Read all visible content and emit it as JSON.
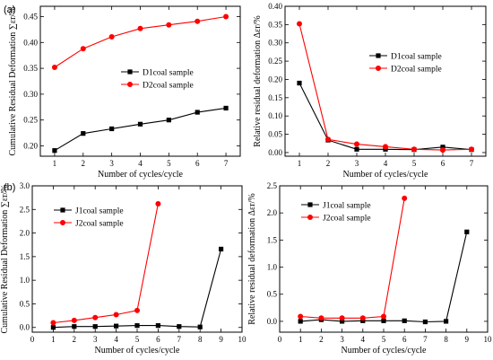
{
  "panel_labels": {
    "a": "(a)",
    "b": "(b)"
  },
  "chart_data": [
    {
      "type": "line",
      "panel": "a",
      "ylabel": "Cumulative Residual Deformation ∑εr/%",
      "xlabel": "Number of cycles/cycle",
      "xlim": [
        0.5,
        7.5
      ],
      "ylim": [
        0.18,
        0.47
      ],
      "xticks": [
        1,
        2,
        3,
        4,
        5,
        6,
        7
      ],
      "yticks": [
        0.2,
        0.25,
        0.3,
        0.35,
        0.4,
        0.45
      ],
      "ytick_labels": [
        "0.20",
        "0.25",
        "0.30",
        "0.35",
        "0.40",
        "0.45"
      ],
      "legend_position": "center-right",
      "series": [
        {
          "name": "D1coal sample",
          "color": "#000000",
          "marker": "square",
          "x": [
            1,
            2,
            3,
            4,
            5,
            6,
            7
          ],
          "y": [
            0.191,
            0.224,
            0.233,
            0.242,
            0.25,
            0.265,
            0.273
          ]
        },
        {
          "name": "D2coal sample",
          "color": "#ff0000",
          "marker": "circle",
          "x": [
            1,
            2,
            3,
            4,
            5,
            6,
            7
          ],
          "y": [
            0.352,
            0.388,
            0.411,
            0.427,
            0.434,
            0.441,
            0.45
          ]
        }
      ]
    },
    {
      "type": "line",
      "panel": "a-right",
      "ylabel": "Relative residual deformation Δεr/%",
      "xlabel": "Number of cycles/cycle",
      "xlim": [
        0.5,
        7.5
      ],
      "ylim": [
        -0.01,
        0.4
      ],
      "xticks": [
        1,
        2,
        3,
        4,
        5,
        6,
        7
      ],
      "yticks": [
        0.0,
        0.05,
        0.1,
        0.15,
        0.2,
        0.25,
        0.3,
        0.35,
        0.4
      ],
      "ytick_labels": [
        "0.00",
        "0.05",
        "0.10",
        "0.15",
        "0.20",
        "0.25",
        "0.30",
        "0.35",
        "0.40"
      ],
      "legend_position": "top-right",
      "series": [
        {
          "name": "D1coal sample",
          "color": "#000000",
          "marker": "square",
          "x": [
            1,
            2,
            3,
            4,
            5,
            6,
            7
          ],
          "y": [
            0.19,
            0.034,
            0.009,
            0.009,
            0.008,
            0.015,
            0.008
          ]
        },
        {
          "name": "D2coal sample",
          "color": "#ff0000",
          "marker": "circle",
          "x": [
            1,
            2,
            3,
            4,
            5,
            6,
            7
          ],
          "y": [
            0.352,
            0.036,
            0.023,
            0.016,
            0.009,
            0.007,
            0.009
          ]
        }
      ]
    },
    {
      "type": "line",
      "panel": "b",
      "ylabel": "Cumulative Residual Deformation ∑εr/%",
      "xlabel": "Number of cycles/cycle",
      "xlim": [
        0,
        10
      ],
      "ylim": [
        -0.1,
        3.0
      ],
      "xticks": [
        0,
        1,
        2,
        3,
        4,
        5,
        6,
        7,
        8,
        9,
        10
      ],
      "yticks": [
        0.0,
        0.5,
        1.0,
        1.5,
        2.0,
        2.5,
        3.0
      ],
      "ytick_labels": [
        "0.0",
        "0.5",
        "1.0",
        "1.5",
        "2.0",
        "2.5",
        "3.0"
      ],
      "legend_position": "top-left",
      "series": [
        {
          "name": "J1coal sample",
          "color": "#000000",
          "marker": "square",
          "x": [
            1,
            2,
            3,
            4,
            5,
            6,
            7,
            8,
            9
          ],
          "y": [
            0.0,
            0.02,
            0.02,
            0.03,
            0.04,
            0.04,
            0.02,
            0.01,
            1.66
          ]
        },
        {
          "name": "J2coal sample",
          "color": "#ff0000",
          "marker": "circle",
          "x": [
            1,
            2,
            3,
            4,
            5,
            6
          ],
          "y": [
            0.1,
            0.15,
            0.21,
            0.27,
            0.36,
            2.62
          ]
        }
      ]
    },
    {
      "type": "line",
      "panel": "b-right",
      "ylabel": "Relative residual deformation Δεr/%",
      "xlabel": "Number of cycles/cycle",
      "xlim": [
        0,
        10
      ],
      "ylim": [
        -0.2,
        2.5
      ],
      "xticks": [
        0,
        1,
        2,
        3,
        4,
        5,
        6,
        7,
        8,
        9,
        10
      ],
      "yticks": [
        0.0,
        0.5,
        1.0,
        1.5,
        2.0,
        2.5
      ],
      "ytick_labels": [
        "0.0",
        "0.5",
        "1.0",
        "1.5",
        "2.0",
        "2.5"
      ],
      "legend_position": "top-left",
      "series": [
        {
          "name": "J1coal sample",
          "color": "#000000",
          "marker": "square",
          "x": [
            1,
            2,
            3,
            4,
            5,
            6,
            7,
            8,
            9
          ],
          "y": [
            0.0,
            0.03,
            0.0,
            0.01,
            0.01,
            0.01,
            -0.01,
            0.0,
            1.65
          ]
        },
        {
          "name": "J2coal sample",
          "color": "#ff0000",
          "marker": "circle",
          "x": [
            1,
            2,
            3,
            4,
            5,
            6
          ],
          "y": [
            0.09,
            0.06,
            0.06,
            0.06,
            0.09,
            2.27
          ]
        }
      ]
    }
  ]
}
